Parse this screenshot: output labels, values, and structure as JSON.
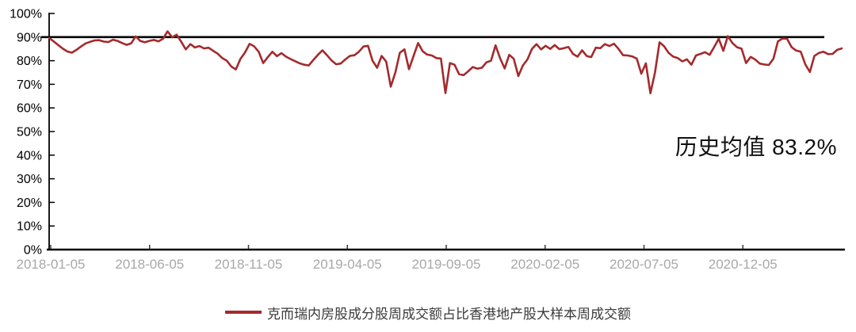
{
  "chart_data": {
    "type": "line",
    "title": "",
    "x_start": "2018-01-05",
    "x_frequency": "weekly",
    "x_tick_labels": [
      "2018-01-05",
      "2018-06-05",
      "2018-11-05",
      "2019-04-05",
      "2019-09-05",
      "2020-02-05",
      "2020-07-05",
      "2020-12-05"
    ],
    "y_tick_labels": [
      "0%",
      "10%",
      "20%",
      "30%",
      "40%",
      "50%",
      "60%",
      "70%",
      "80%",
      "90%",
      "100%"
    ],
    "ylim": [
      0,
      100
    ],
    "y_unit": "%",
    "grid": false,
    "legend_position": "bottom",
    "reference_line": {
      "value": 90,
      "color": "#000000"
    },
    "annotation": {
      "text": "历史均值 83.2%",
      "mean_value": 83.2
    },
    "series": [
      {
        "name": "克而瑞内房股成分股周成交额占比香港地产股大样本周成交额",
        "color": "#A42A2D",
        "values": [
          89.6,
          88.2,
          86.6,
          85.1,
          83.9,
          83.4,
          84.6,
          86.0,
          87.3,
          88.0,
          88.6,
          88.7,
          88.1,
          87.9,
          88.9,
          88.4,
          87.5,
          86.7,
          87.3,
          90.3,
          88.4,
          87.8,
          88.4,
          88.8,
          88.2,
          89.3,
          92.4,
          89.9,
          91.0,
          88.0,
          84.8,
          87.0,
          85.6,
          86.2,
          85.2,
          85.5,
          84.2,
          83.0,
          81.1,
          80.0,
          77.5,
          76.3,
          80.8,
          83.5,
          87.1,
          86.1,
          83.8,
          79.0,
          81.5,
          83.8,
          81.9,
          83.2,
          81.7,
          80.7,
          79.8,
          78.9,
          78.3,
          78.0,
          80.3,
          82.5,
          84.4,
          82.3,
          80.1,
          78.5,
          78.8,
          80.5,
          82.0,
          82.3,
          83.8,
          86.0,
          86.3,
          80.0,
          77.0,
          82.0,
          79.6,
          69.0,
          75.0,
          83.4,
          84.8,
          76.4,
          82.0,
          87.5,
          84.0,
          82.6,
          82.2,
          81.1,
          80.9,
          66.3,
          79.0,
          78.3,
          74.3,
          73.9,
          75.5,
          77.3,
          76.6,
          77.0,
          79.3,
          80.0,
          86.5,
          81.0,
          76.7,
          82.5,
          80.8,
          73.5,
          78.0,
          80.5,
          85.0,
          87.0,
          84.8,
          86.3,
          85.0,
          86.6,
          84.9,
          85.3,
          85.8,
          82.9,
          81.7,
          84.4,
          82.0,
          81.5,
          85.5,
          85.3,
          87.0,
          86.2,
          87.2,
          85.0,
          82.3,
          82.2,
          81.8,
          80.9,
          74.5,
          78.9,
          66.2,
          75.0,
          87.8,
          86.1,
          83.3,
          81.7,
          81.1,
          79.7,
          80.6,
          78.3,
          82.2,
          82.9,
          83.6,
          82.5,
          85.8,
          89.3,
          84.2,
          90.4,
          87.5,
          85.7,
          85.1,
          79.0,
          81.6,
          80.5,
          78.8,
          78.4,
          78.2,
          80.8,
          88.2,
          89.4,
          89.3,
          85.7,
          84.3,
          83.8,
          78.5,
          75.2,
          82.0,
          83.3,
          83.8,
          82.8,
          82.9,
          84.6,
          85.2
        ]
      }
    ],
    "colors": {
      "axis": "#000000",
      "x_tick_label": "#A8A8A8",
      "y_tick_label": "#000000",
      "annotation_text": "#111111",
      "legend_text": "#3a3a3a"
    }
  }
}
